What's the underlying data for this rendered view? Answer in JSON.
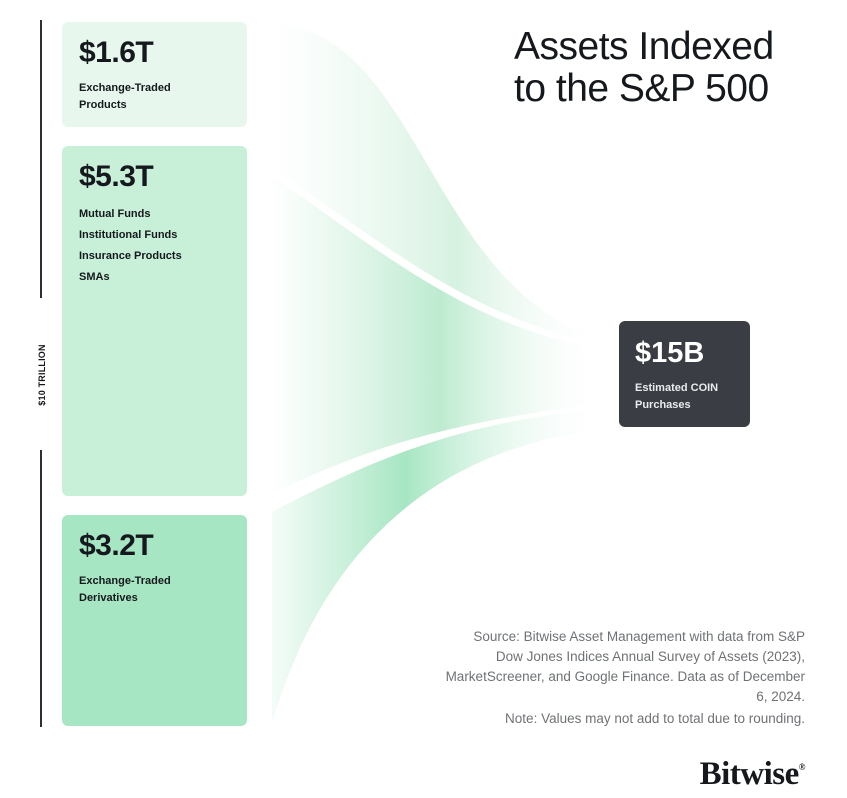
{
  "total_label": "$10 TRILLION",
  "title": {
    "line1": "Assets Indexed",
    "line2": "to the S&P 500"
  },
  "categories": [
    {
      "value": "$1.6T",
      "labels": [
        "Exchange-Traded",
        "Products"
      ],
      "color": "#e8f7ee"
    },
    {
      "value": "$5.3T",
      "labels": [
        "Mutual Funds",
        "Institutional Funds",
        "Insurance Products",
        "SMAs"
      ],
      "color": "#c8efd8"
    },
    {
      "value": "$3.2T",
      "labels": [
        "Exchange-Traded",
        "Derivatives"
      ],
      "color": "#a7e6c3"
    }
  ],
  "target": {
    "value": "$15B",
    "labels": [
      "Estimated COIN",
      "Purchases"
    ],
    "color": "#3a3e44"
  },
  "source": {
    "text": "Source: Bitwise Asset Management with data from S&P Dow Jones Indices Annual Survey of Assets (2023), MarketScreener, and Google Finance. Data as of December 6, 2024.",
    "note": "Note: Values may not add to total due to rounding."
  },
  "logo": {
    "text": "Bitwise",
    "mark": "®"
  }
}
